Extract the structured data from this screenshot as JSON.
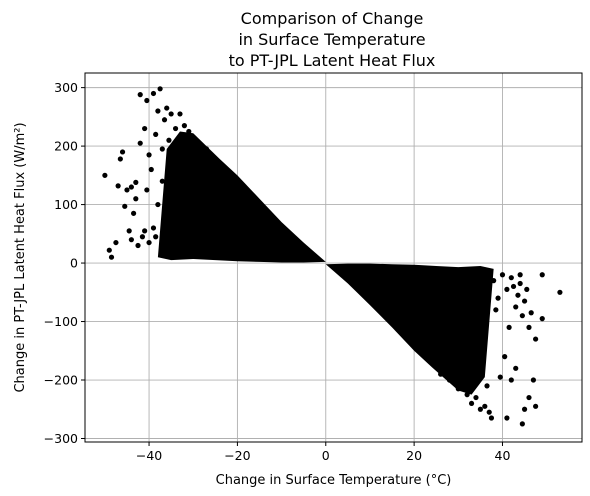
{
  "chart_data": {
    "type": "scatter",
    "title_lines": [
      "Comparison of Change",
      "in Surface Temperature",
      "to PT-JPL Latent Heat Flux"
    ],
    "xlabel": "Change in Surface Temperature (°C)",
    "ylabel": "Change in PT-JPL Latent Heat Flux (W/m²)",
    "xlim": [
      -54.5,
      58
    ],
    "ylim": [
      -306,
      325
    ],
    "xticks": [
      -40,
      -20,
      0,
      20,
      40
    ],
    "xtick_labels": [
      "−40",
      "−20",
      "0",
      "20",
      "40"
    ],
    "yticks": [
      -300,
      -200,
      -100,
      0,
      100,
      200,
      300
    ],
    "ytick_labels": [
      "−300",
      "−200",
      "−100",
      "0",
      "100",
      "200",
      "300"
    ],
    "grid": true,
    "marker_color": "#000000",
    "series": [
      {
        "points": [
          [
            -50,
            150
          ],
          [
            -49,
            22
          ],
          [
            -48.5,
            10
          ],
          [
            -47.5,
            35
          ],
          [
            -47,
            132
          ],
          [
            -46.5,
            178
          ],
          [
            -46,
            190
          ],
          [
            -45.5,
            97
          ],
          [
            -45,
            125
          ],
          [
            -44.5,
            55
          ],
          [
            -44,
            130
          ],
          [
            -44,
            40
          ],
          [
            -43.5,
            85
          ],
          [
            -43,
            110
          ],
          [
            -43,
            138
          ],
          [
            -42.5,
            30
          ],
          [
            -42,
            288
          ],
          [
            -42,
            205
          ],
          [
            -41.5,
            45
          ],
          [
            -41,
            230
          ],
          [
            -41,
            55
          ],
          [
            -40.5,
            278
          ],
          [
            -40.5,
            125
          ],
          [
            -40,
            185
          ],
          [
            -40,
            35
          ],
          [
            -39.5,
            160
          ],
          [
            -39,
            290
          ],
          [
            -39,
            60
          ],
          [
            -38.5,
            220
          ],
          [
            -38.5,
            45
          ],
          [
            -38,
            260
          ],
          [
            -38,
            100
          ],
          [
            -37.5,
            298
          ],
          [
            -37,
            140
          ],
          [
            -37,
            195
          ],
          [
            -36.5,
            245
          ],
          [
            -36,
            265
          ],
          [
            -36,
            70
          ],
          [
            -35.5,
            210
          ],
          [
            -35,
            255
          ],
          [
            -35,
            40
          ],
          [
            -34,
            230
          ],
          [
            -33,
            255
          ],
          [
            -32,
            235
          ],
          [
            -31,
            225
          ],
          [
            -30,
            215
          ],
          [
            -29,
            208
          ],
          [
            -28,
            20
          ],
          [
            -27,
            195
          ],
          [
            -26,
            180
          ],
          [
            -25,
            175
          ],
          [
            -24,
            165
          ],
          [
            -23,
            12
          ],
          [
            -22,
            155
          ],
          [
            -20,
            130
          ],
          [
            -18,
            110
          ],
          [
            -15,
            85
          ],
          [
            -12,
            65
          ],
          [
            -9,
            45
          ],
          [
            -6,
            28
          ],
          [
            -3,
            12
          ],
          [
            3,
            -12
          ],
          [
            6,
            -28
          ],
          [
            9,
            -45
          ],
          [
            12,
            -65
          ],
          [
            15,
            -85
          ],
          [
            18,
            -105
          ],
          [
            20,
            -125
          ],
          [
            22,
            -150
          ],
          [
            24,
            -170
          ],
          [
            26,
            -190
          ],
          [
            28,
            -200
          ],
          [
            30,
            -215
          ],
          [
            32,
            -225
          ],
          [
            33,
            -240
          ],
          [
            34,
            -230
          ],
          [
            35,
            -250
          ],
          [
            36,
            -245
          ],
          [
            36.5,
            -210
          ],
          [
            37,
            -255
          ],
          [
            37.5,
            -265
          ],
          [
            38,
            -30
          ],
          [
            38.5,
            -80
          ],
          [
            39,
            -60
          ],
          [
            39.5,
            -195
          ],
          [
            40,
            -20
          ],
          [
            40.5,
            -160
          ],
          [
            41,
            -45
          ],
          [
            41,
            -265
          ],
          [
            41.5,
            -110
          ],
          [
            42,
            -25
          ],
          [
            42,
            -200
          ],
          [
            42.5,
            -40
          ],
          [
            43,
            -75
          ],
          [
            43,
            -180
          ],
          [
            43.5,
            -55
          ],
          [
            44,
            -20
          ],
          [
            44,
            -35
          ],
          [
            44.5,
            -275
          ],
          [
            44.5,
            -90
          ],
          [
            45,
            -250
          ],
          [
            45,
            -65
          ],
          [
            45.5,
            -45
          ],
          [
            46,
            -110
          ],
          [
            46,
            -230
          ],
          [
            46.5,
            -85
          ],
          [
            47,
            -200
          ],
          [
            47.5,
            -130
          ],
          [
            47.5,
            -245
          ],
          [
            49,
            -20
          ],
          [
            49,
            -95
          ],
          [
            53,
            -50
          ]
        ]
      }
    ]
  }
}
